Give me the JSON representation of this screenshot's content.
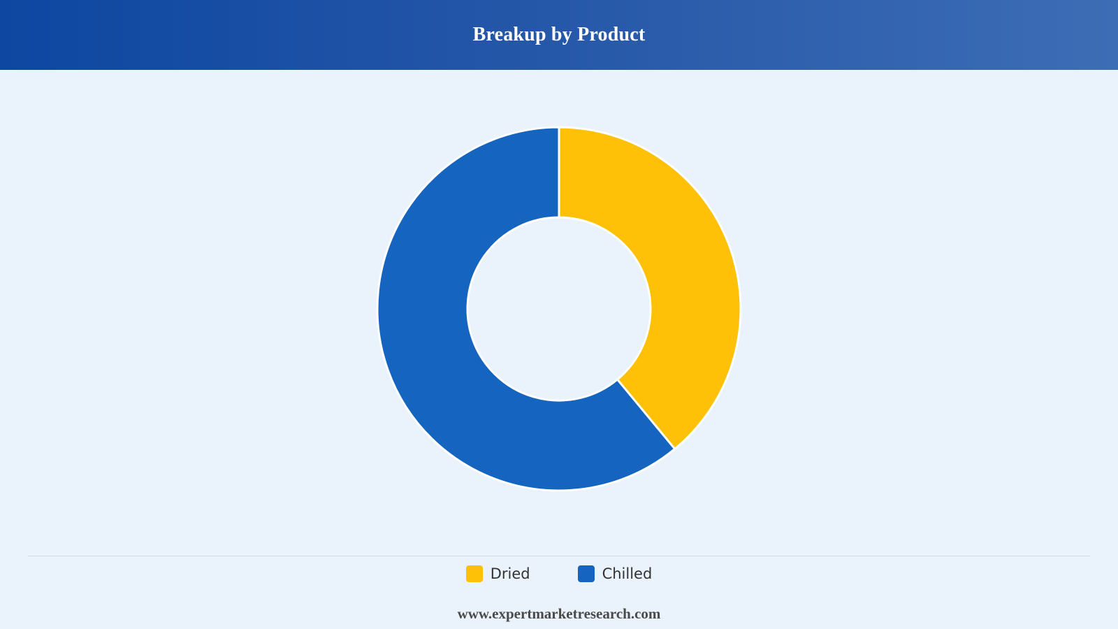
{
  "header": {
    "title": "Breakup by Product"
  },
  "chart_data": {
    "type": "pie",
    "donut": true,
    "title": "Breakup by Product",
    "categories": [
      "Dried",
      "Chilled"
    ],
    "values": [
      39,
      61
    ],
    "colors": [
      "#ffc107",
      "#1565c0"
    ],
    "legend_position": "bottom-center"
  },
  "legend": {
    "items": [
      {
        "label": "Dried",
        "color": "#ffc107"
      },
      {
        "label": "Chilled",
        "color": "#1565c0"
      }
    ]
  },
  "footer": {
    "source": "www.expertmarketresearch.com"
  }
}
